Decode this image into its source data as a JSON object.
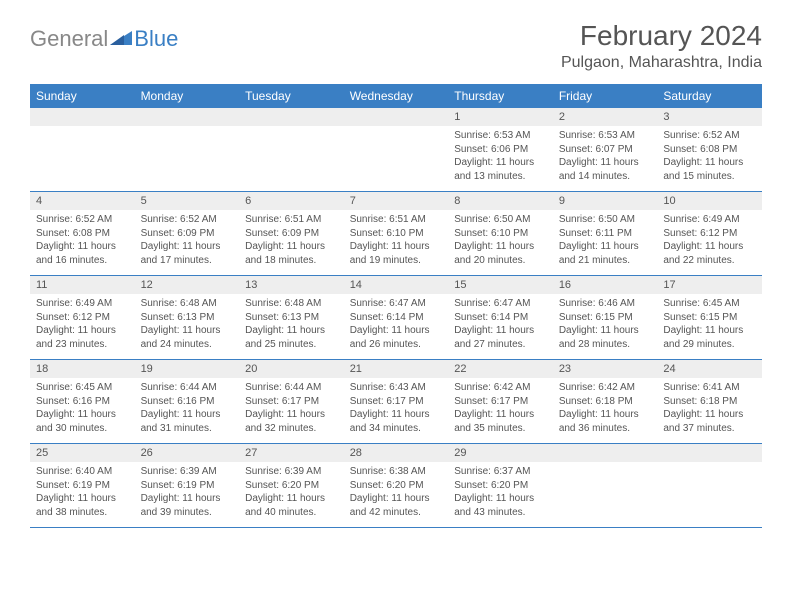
{
  "logo": {
    "text1": "General",
    "text2": "Blue"
  },
  "title": "February 2024",
  "location": "Pulgaon, Maharashtra, India",
  "colors": {
    "header_bg": "#3a7fc4",
    "header_text": "#ffffff",
    "daynum_bg": "#eeeeee",
    "text": "#555555",
    "border": "#3a7fc4"
  },
  "day_headers": [
    "Sunday",
    "Monday",
    "Tuesday",
    "Wednesday",
    "Thursday",
    "Friday",
    "Saturday"
  ],
  "weeks": [
    [
      {
        "n": "",
        "sunrise": "",
        "sunset": "",
        "daylight": ""
      },
      {
        "n": "",
        "sunrise": "",
        "sunset": "",
        "daylight": ""
      },
      {
        "n": "",
        "sunrise": "",
        "sunset": "",
        "daylight": ""
      },
      {
        "n": "",
        "sunrise": "",
        "sunset": "",
        "daylight": ""
      },
      {
        "n": "1",
        "sunrise": "Sunrise: 6:53 AM",
        "sunset": "Sunset: 6:06 PM",
        "daylight": "Daylight: 11 hours and 13 minutes."
      },
      {
        "n": "2",
        "sunrise": "Sunrise: 6:53 AM",
        "sunset": "Sunset: 6:07 PM",
        "daylight": "Daylight: 11 hours and 14 minutes."
      },
      {
        "n": "3",
        "sunrise": "Sunrise: 6:52 AM",
        "sunset": "Sunset: 6:08 PM",
        "daylight": "Daylight: 11 hours and 15 minutes."
      }
    ],
    [
      {
        "n": "4",
        "sunrise": "Sunrise: 6:52 AM",
        "sunset": "Sunset: 6:08 PM",
        "daylight": "Daylight: 11 hours and 16 minutes."
      },
      {
        "n": "5",
        "sunrise": "Sunrise: 6:52 AM",
        "sunset": "Sunset: 6:09 PM",
        "daylight": "Daylight: 11 hours and 17 minutes."
      },
      {
        "n": "6",
        "sunrise": "Sunrise: 6:51 AM",
        "sunset": "Sunset: 6:09 PM",
        "daylight": "Daylight: 11 hours and 18 minutes."
      },
      {
        "n": "7",
        "sunrise": "Sunrise: 6:51 AM",
        "sunset": "Sunset: 6:10 PM",
        "daylight": "Daylight: 11 hours and 19 minutes."
      },
      {
        "n": "8",
        "sunrise": "Sunrise: 6:50 AM",
        "sunset": "Sunset: 6:10 PM",
        "daylight": "Daylight: 11 hours and 20 minutes."
      },
      {
        "n": "9",
        "sunrise": "Sunrise: 6:50 AM",
        "sunset": "Sunset: 6:11 PM",
        "daylight": "Daylight: 11 hours and 21 minutes."
      },
      {
        "n": "10",
        "sunrise": "Sunrise: 6:49 AM",
        "sunset": "Sunset: 6:12 PM",
        "daylight": "Daylight: 11 hours and 22 minutes."
      }
    ],
    [
      {
        "n": "11",
        "sunrise": "Sunrise: 6:49 AM",
        "sunset": "Sunset: 6:12 PM",
        "daylight": "Daylight: 11 hours and 23 minutes."
      },
      {
        "n": "12",
        "sunrise": "Sunrise: 6:48 AM",
        "sunset": "Sunset: 6:13 PM",
        "daylight": "Daylight: 11 hours and 24 minutes."
      },
      {
        "n": "13",
        "sunrise": "Sunrise: 6:48 AM",
        "sunset": "Sunset: 6:13 PM",
        "daylight": "Daylight: 11 hours and 25 minutes."
      },
      {
        "n": "14",
        "sunrise": "Sunrise: 6:47 AM",
        "sunset": "Sunset: 6:14 PM",
        "daylight": "Daylight: 11 hours and 26 minutes."
      },
      {
        "n": "15",
        "sunrise": "Sunrise: 6:47 AM",
        "sunset": "Sunset: 6:14 PM",
        "daylight": "Daylight: 11 hours and 27 minutes."
      },
      {
        "n": "16",
        "sunrise": "Sunrise: 6:46 AM",
        "sunset": "Sunset: 6:15 PM",
        "daylight": "Daylight: 11 hours and 28 minutes."
      },
      {
        "n": "17",
        "sunrise": "Sunrise: 6:45 AM",
        "sunset": "Sunset: 6:15 PM",
        "daylight": "Daylight: 11 hours and 29 minutes."
      }
    ],
    [
      {
        "n": "18",
        "sunrise": "Sunrise: 6:45 AM",
        "sunset": "Sunset: 6:16 PM",
        "daylight": "Daylight: 11 hours and 30 minutes."
      },
      {
        "n": "19",
        "sunrise": "Sunrise: 6:44 AM",
        "sunset": "Sunset: 6:16 PM",
        "daylight": "Daylight: 11 hours and 31 minutes."
      },
      {
        "n": "20",
        "sunrise": "Sunrise: 6:44 AM",
        "sunset": "Sunset: 6:17 PM",
        "daylight": "Daylight: 11 hours and 32 minutes."
      },
      {
        "n": "21",
        "sunrise": "Sunrise: 6:43 AM",
        "sunset": "Sunset: 6:17 PM",
        "daylight": "Daylight: 11 hours and 34 minutes."
      },
      {
        "n": "22",
        "sunrise": "Sunrise: 6:42 AM",
        "sunset": "Sunset: 6:17 PM",
        "daylight": "Daylight: 11 hours and 35 minutes."
      },
      {
        "n": "23",
        "sunrise": "Sunrise: 6:42 AM",
        "sunset": "Sunset: 6:18 PM",
        "daylight": "Daylight: 11 hours and 36 minutes."
      },
      {
        "n": "24",
        "sunrise": "Sunrise: 6:41 AM",
        "sunset": "Sunset: 6:18 PM",
        "daylight": "Daylight: 11 hours and 37 minutes."
      }
    ],
    [
      {
        "n": "25",
        "sunrise": "Sunrise: 6:40 AM",
        "sunset": "Sunset: 6:19 PM",
        "daylight": "Daylight: 11 hours and 38 minutes."
      },
      {
        "n": "26",
        "sunrise": "Sunrise: 6:39 AM",
        "sunset": "Sunset: 6:19 PM",
        "daylight": "Daylight: 11 hours and 39 minutes."
      },
      {
        "n": "27",
        "sunrise": "Sunrise: 6:39 AM",
        "sunset": "Sunset: 6:20 PM",
        "daylight": "Daylight: 11 hours and 40 minutes."
      },
      {
        "n": "28",
        "sunrise": "Sunrise: 6:38 AM",
        "sunset": "Sunset: 6:20 PM",
        "daylight": "Daylight: 11 hours and 42 minutes."
      },
      {
        "n": "29",
        "sunrise": "Sunrise: 6:37 AM",
        "sunset": "Sunset: 6:20 PM",
        "daylight": "Daylight: 11 hours and 43 minutes."
      },
      {
        "n": "",
        "sunrise": "",
        "sunset": "",
        "daylight": ""
      },
      {
        "n": "",
        "sunrise": "",
        "sunset": "",
        "daylight": ""
      }
    ]
  ]
}
